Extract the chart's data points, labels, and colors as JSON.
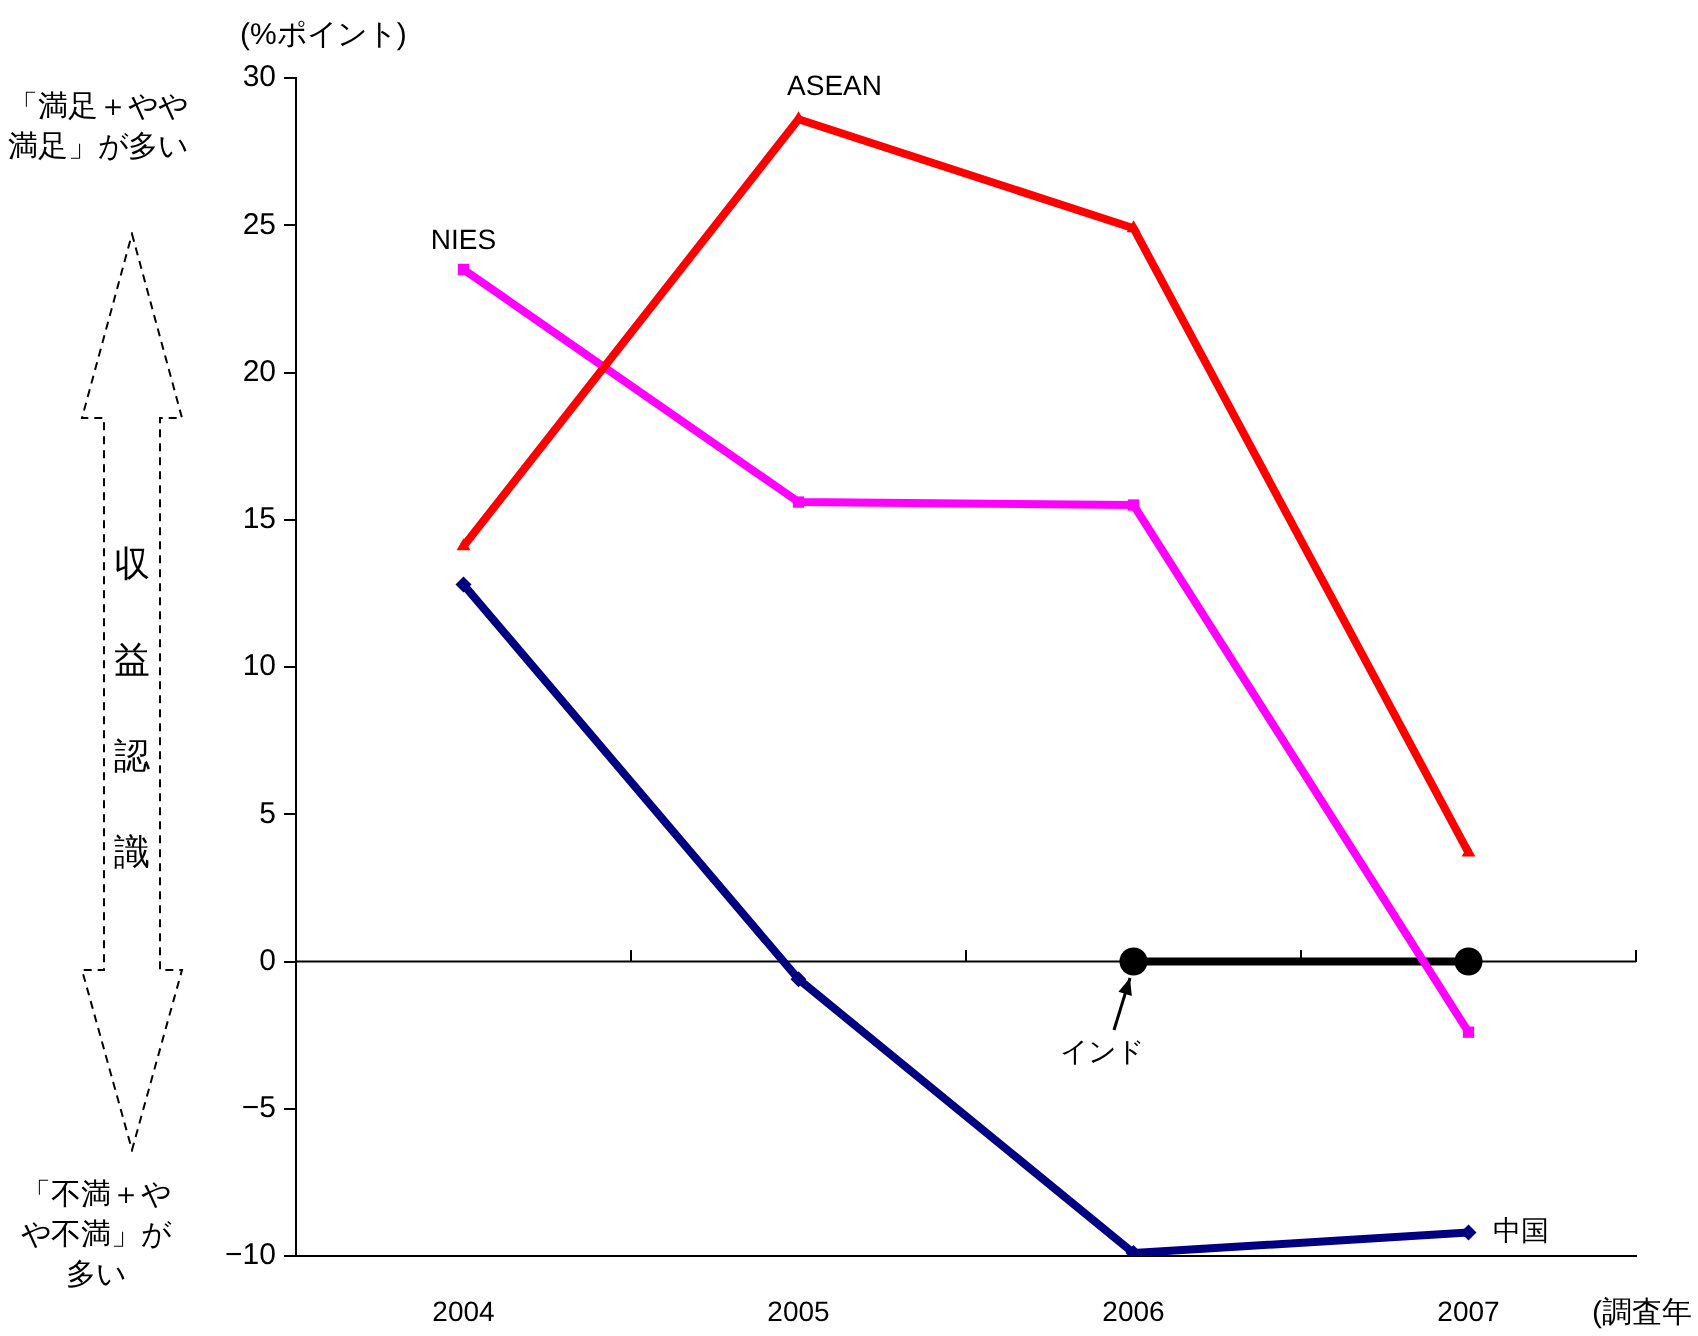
{
  "chart_data": {
    "type": "line",
    "ylabel": "(%ポイント)",
    "xlabel": "(調査年",
    "categories": [
      "2004",
      "2005",
      "2006",
      "2007"
    ],
    "series": [
      {
        "name": "ASEAN",
        "color": "#ff0000",
        "marker": "triangle",
        "values": [
          14.1,
          28.6,
          24.9,
          3.7
        ]
      },
      {
        "name": "NIES",
        "color": "#ff00ff",
        "marker": "square",
        "values": [
          23.5,
          15.6,
          15.5,
          -2.4
        ]
      },
      {
        "name": "中国",
        "color": "#000080",
        "marker": "diamond",
        "values": [
          12.8,
          -0.6,
          -9.9,
          -9.2
        ]
      },
      {
        "name": "インド",
        "color": "#000000",
        "marker": "circle",
        "values": [
          null,
          null,
          0,
          0
        ]
      }
    ],
    "ylim": [
      -10,
      30
    ],
    "yticks": [
      -10,
      -5,
      0,
      5,
      10,
      15,
      20,
      25,
      30
    ],
    "ref_lines": [
      {
        "axis": "y",
        "value": 0,
        "color": "#000000"
      }
    ],
    "annotations": [
      "「満足＋やや満足」が多い",
      "収益認識",
      "「不満＋やや不満」が多い"
    ],
    "grid": false
  }
}
